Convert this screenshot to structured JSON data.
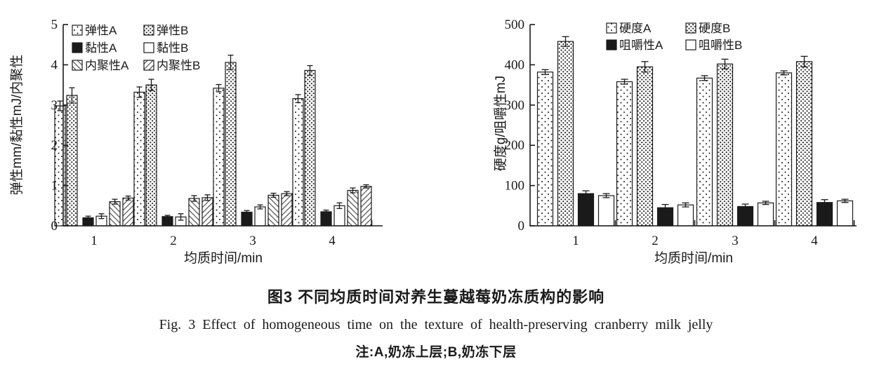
{
  "figure": {
    "caption_zh": "图3  不同均质时间对养生蔓越莓奶冻质构的影响",
    "caption_en": "Fig. 3  Effect of homogeneous time on the texture of health-preserving cranberry milk jelly",
    "note": "注:A,奶冻上层;B,奶冻下层"
  },
  "chart_data": [
    {
      "type": "bar",
      "title": "",
      "xlabel": "均质时间/min",
      "ylabel": "弹性mm/黏性mJ/内聚性",
      "ylim": [
        0,
        5
      ],
      "yticks": [
        0,
        1,
        2,
        3,
        4,
        5
      ],
      "categories": [
        "1",
        "2",
        "3",
        "4"
      ],
      "grid": false,
      "legend_position": "top-inside",
      "series": [
        {
          "name": "弹性A",
          "pattern": "dots-sparse",
          "values": [
            2.98,
            3.32,
            3.42,
            3.16
          ],
          "errors": [
            0.12,
            0.13,
            0.09,
            0.1
          ]
        },
        {
          "name": "弹性B",
          "pattern": "dots-dense",
          "values": [
            3.24,
            3.5,
            4.06,
            3.86
          ],
          "errors": [
            0.19,
            0.14,
            0.18,
            0.12
          ]
        },
        {
          "name": "黏性A",
          "pattern": "solid-black",
          "values": [
            0.2,
            0.23,
            0.34,
            0.35
          ],
          "errors": [
            0.04,
            0.03,
            0.04,
            0.04
          ]
        },
        {
          "name": "黏性B",
          "pattern": "plain-white",
          "values": [
            0.24,
            0.22,
            0.47,
            0.5
          ],
          "errors": [
            0.06,
            0.08,
            0.05,
            0.07
          ]
        },
        {
          "name": "内聚性A",
          "pattern": "hatch-back",
          "values": [
            0.6,
            0.68,
            0.76,
            0.88
          ],
          "errors": [
            0.06,
            0.07,
            0.05,
            0.06
          ]
        },
        {
          "name": "内聚性B",
          "pattern": "hatch-fwd",
          "values": [
            0.69,
            0.7,
            0.8,
            0.98
          ],
          "errors": [
            0.05,
            0.07,
            0.05,
            0.04
          ]
        }
      ]
    },
    {
      "type": "bar",
      "title": "",
      "xlabel": "均质时间/min",
      "ylabel": "硬度g/咀嚼性mJ",
      "ylim": [
        0,
        500
      ],
      "yticks": [
        0,
        100,
        200,
        300,
        400,
        500
      ],
      "categories": [
        "1",
        "2",
        "3",
        "4"
      ],
      "grid": false,
      "legend_position": "top-inside",
      "series": [
        {
          "name": "硬度A",
          "pattern": "dots-sparse",
          "values": [
            382,
            358,
            367,
            380
          ],
          "errors": [
            6,
            6,
            6,
            5
          ]
        },
        {
          "name": "硬度B",
          "pattern": "dots-dense",
          "values": [
            458,
            395,
            402,
            408
          ],
          "errors": [
            12,
            13,
            12,
            13
          ]
        },
        {
          "name": "咀嚼性A",
          "pattern": "solid-black",
          "values": [
            80,
            45,
            48,
            58
          ],
          "errors": [
            7,
            8,
            6,
            7
          ]
        },
        {
          "name": "咀嚼性B",
          "pattern": "plain-white",
          "values": [
            75,
            52,
            57,
            62
          ],
          "errors": [
            5,
            5,
            4,
            4
          ]
        }
      ]
    }
  ],
  "colors": {
    "ink": "#1a1a1a",
    "background": "#ffffff"
  }
}
